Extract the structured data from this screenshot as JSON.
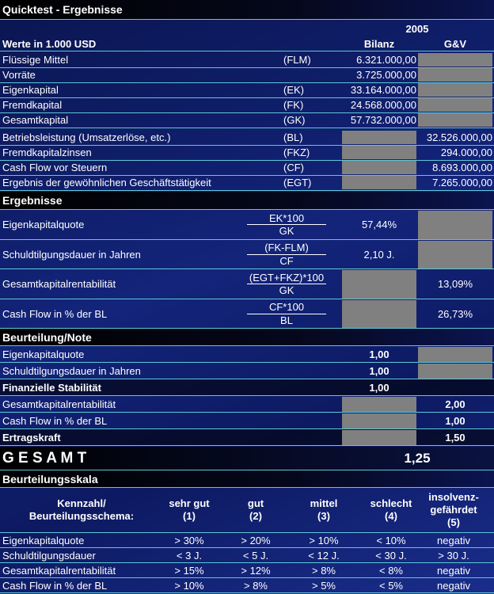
{
  "title": "Quicktest - Ergebnisse",
  "year": "2005",
  "units": "Werte in 1.000 USD",
  "columns": [
    "Bilanz",
    "G&V"
  ],
  "inputs": [
    {
      "label": "Flüssige Mittel",
      "abbr": "(FLM)",
      "bilanz": "6.321.000,00"
    },
    {
      "label": "Vorräte",
      "bilanz": "3.725.000,00"
    },
    {
      "label": "Eigenkapital",
      "abbr": "(EK)",
      "bilanz": "33.164.000,00"
    },
    {
      "label": "Fremdkapital",
      "abbr": "(FK)",
      "bilanz": "24.568.000,00"
    },
    {
      "label": "Gesamtkapital",
      "abbr": "(GK)",
      "bilanz": "57.732.000,00"
    },
    {
      "label": "Betriebsleistung (Umsatzerlöse, etc.)",
      "abbr": "(BL)",
      "guv": "32.526.000,00"
    },
    {
      "label": "Fremdkapitalzinsen",
      "abbr": "(FKZ)",
      "guv": "294.000,00"
    },
    {
      "label": "Cash Flow vor Steuern",
      "abbr": "(CF)",
      "guv": "8.693.000,00"
    },
    {
      "label": "Ergebnis der gewöhnlichen Geschäftstätigkeit",
      "abbr": "(EGT)",
      "guv": "7.265.000,00"
    }
  ],
  "ergebnisse": {
    "title": "Ergebnisse",
    "rows": [
      {
        "label": "Eigenkapitalquote",
        "numerator": "EK*100",
        "denominator": "GK",
        "bilanz": "57,44%"
      },
      {
        "label": "Schuldtilgungsdauer in Jahren",
        "numerator": "(FK-FLM)",
        "denominator": "CF",
        "bilanz": "2,10 J."
      },
      {
        "label": "Gesamtkapitalrentabilität",
        "numerator": "(EGT+FKZ)*100",
        "denominator": "GK",
        "guv": "13,09%"
      },
      {
        "label": "Cash Flow in % der BL",
        "numerator": "CF*100",
        "denominator": "BL",
        "guv": "26,73%"
      }
    ]
  },
  "beurteilung": {
    "title": "Beurteilung/Note",
    "rows": [
      {
        "label": "Eigenkapitalquote",
        "bilanz": "1,00"
      },
      {
        "label": "Schuldtilgungsdauer in Jahren",
        "bilanz": "1,00"
      },
      {
        "label": "Finanzielle Stabilität",
        "bilanz": "1,00",
        "summary": true
      },
      {
        "label": "Gesamtkapitalrentabilität",
        "guv": "2,00"
      },
      {
        "label": "Cash Flow in % der BL",
        "guv": "1,00"
      },
      {
        "label": "Ertragskraft",
        "guv": "1,50",
        "summary": true
      }
    ]
  },
  "gesamt": {
    "label": "G E S A M T",
    "value": "1,25"
  },
  "skala": {
    "title": "Beurteilungsskala",
    "header": [
      "Kennzahl/\nBeurteilungsschema:",
      "sehr gut\n(1)",
      "gut\n(2)",
      "mittel\n(3)",
      "schlecht\n(4)",
      "insolvenz-\ngefährdet\n(5)"
    ],
    "rows": [
      [
        "Eigenkapitalquote",
        "> 30%",
        "> 20%",
        "> 10%",
        "< 10%",
        "negativ"
      ],
      [
        "Schuldtilgungsdauer",
        "< 3 J.",
        "< 5 J.",
        "< 12 J.",
        "< 30 J.",
        "> 30 J."
      ],
      [
        "Gesamtkapitalrentabilität",
        "> 15%",
        "> 12%",
        "> 8%",
        "< 8%",
        "negativ"
      ],
      [
        "Cash Flow in % der BL",
        "> 10%",
        "> 8%",
        "> 5%",
        "< 5%",
        "negativ"
      ]
    ]
  }
}
